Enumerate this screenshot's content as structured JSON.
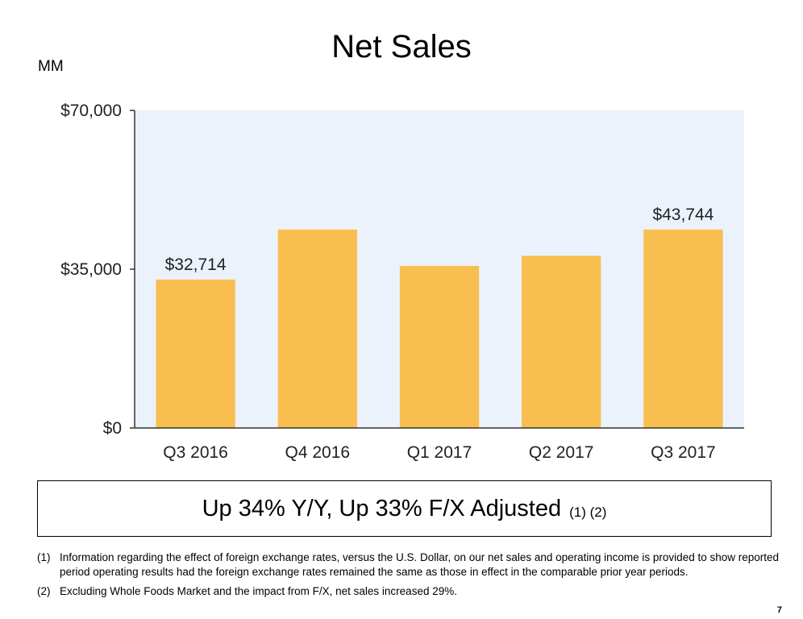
{
  "title": "Net Sales",
  "unit_label": "MM",
  "colors": {
    "bar": "#F9BE50",
    "plot_bg": "#EBF2FB",
    "axis": "#333333"
  },
  "chart_data": {
    "type": "bar",
    "title": "Net Sales",
    "ylabel": "MM",
    "xlabel": "",
    "categories": [
      "Q3 2016",
      "Q4 2016",
      "Q1 2017",
      "Q2 2017",
      "Q3 2017"
    ],
    "values": [
      32714,
      43741,
      35714,
      37955,
      43744
    ],
    "data_labels": [
      "$32,714",
      "",
      "",
      "",
      "$43,744"
    ],
    "ylim": [
      0,
      70000
    ],
    "yticks": [
      0,
      35000,
      70000
    ],
    "ytick_labels": [
      "$0",
      "$35,000",
      "$70,000"
    ],
    "grid": false,
    "legend": "none"
  },
  "callout": {
    "main": "Up 34% Y/Y, Up 33% F/X Adjusted",
    "note": "(1) (2)"
  },
  "footnotes": [
    {
      "num": "(1)",
      "text": "Information regarding the effect of foreign exchange rates, versus the U.S. Dollar, on our net sales and operating income is provided to show reported period operating results had the foreign exchange rates remained the same as those in effect in the comparable prior year periods."
    },
    {
      "num": "(2)",
      "text": "Excluding Whole Foods Market and the impact from F/X, net sales increased 29%."
    }
  ],
  "page_number": "7"
}
